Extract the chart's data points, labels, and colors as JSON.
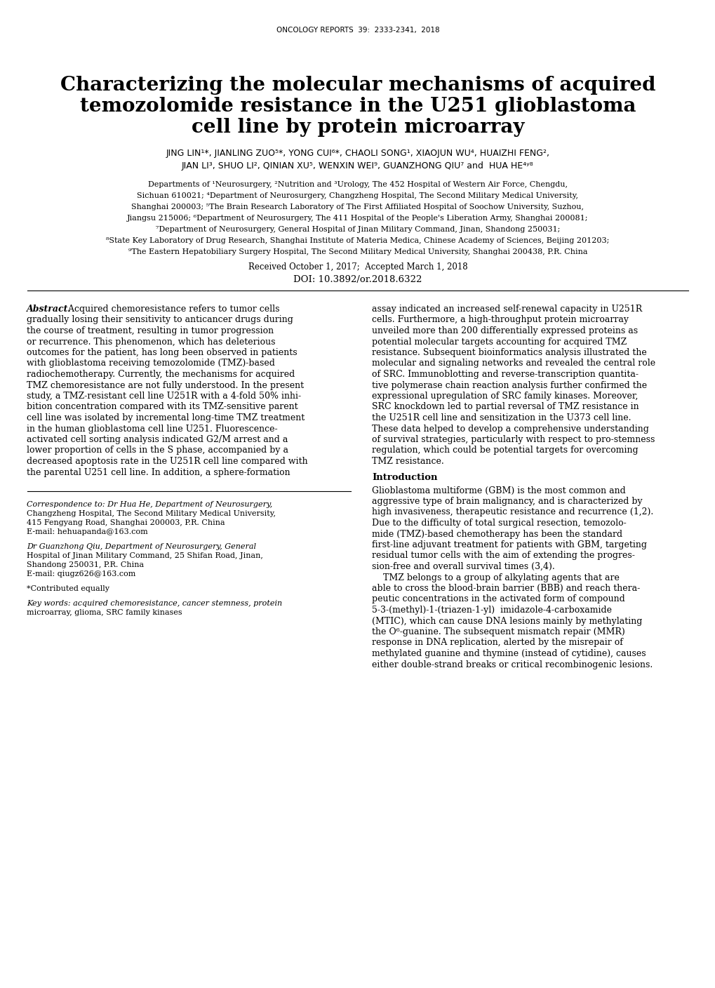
{
  "journal_header": "ONCOLOGY REPORTS  39:  2333-2341,  2018",
  "title_line1": "Characterizing the molecular mechanisms of acquired",
  "title_line2": "temozolomide resistance in the U251 glioblastoma",
  "title_line3": "cell line by protein microarray",
  "authors_line1": "JING LIN¹*, JIANLING ZUO⁵*, YONG CUI⁶*, CHAOLI SONG¹, XIAOJUN WU⁴, HUAIZHI FENG²,",
  "authors_line2": "JIAN LI³, SHUO LI², QINIAN XU⁵, WENXIN WEI⁹, GUANZHONG QIU⁷ and  HUA HE⁴ʸ⁸",
  "affil1": "Departments of ¹Neurosurgery, ²Nutrition and ³Urology, The 452 Hospital of Western Air Force, Chengdu,",
  "affil2": "Sichuan 610021; ⁴Department of Neurosurgery, Changzheng Hospital, The Second Military Medical University,",
  "affil3": "Shanghai 200003; ⁵The Brain Research Laboratory of The First Affiliated Hospital of Soochow University, Suzhou,",
  "affil4": "Jiangsu 215006; ⁶Department of Neurosurgery, The 411 Hospital of the People's Liberation Army, Shanghai 200081;",
  "affil5": "⁷Department of Neurosurgery, General Hospital of Jinan Military Command, Jinan, Shandong 250031;",
  "affil6": "⁸State Key Laboratory of Drug Research, Shanghai Institute of Materia Medica, Chinese Academy of Sciences, Beijing 201203;",
  "affil7": "⁹The Eastern Hepatobiliary Surgery Hospital, The Second Military Medical University, Shanghai 200438, P.R. China",
  "received": "Received October 1, 2017;  Accepted March 1, 2018",
  "doi": "DOI: 10.3892/or.2018.6322",
  "abstract_left_lines": [
    "Abstract. Acquired chemoresistance refers to tumor cells",
    "gradually losing their sensitivity to anticancer drugs during",
    "the course of treatment, resulting in tumor progression",
    "or recurrence. This phenomenon, which has deleterious",
    "outcomes for the patient, has long been observed in patients",
    "with glioblastoma receiving temozolomide (TMZ)-based",
    "radiochemotherapy. Currently, the mechanisms for acquired",
    "TMZ chemoresistance are not fully understood. In the present",
    "study, a TMZ-resistant cell line U251R with a 4-fold 50% inhi-",
    "bition concentration compared with its TMZ-sensitive parent",
    "cell line was isolated by incremental long-time TMZ treatment",
    "in the human glioblastoma cell line U251. Fluorescence-",
    "activated cell sorting analysis indicated G2/M arrest and a",
    "lower proportion of cells in the S phase, accompanied by a",
    "decreased apoptosis rate in the U251R cell line compared with",
    "the parental U251 cell line. In addition, a sphere-formation"
  ],
  "abstract_right_lines": [
    "assay indicated an increased self-renewal capacity in U251R",
    "cells. Furthermore, a high-throughput protein microarray",
    "unveiled more than 200 differentially expressed proteins as",
    "potential molecular targets accounting for acquired TMZ",
    "resistance. Subsequent bioinformatics analysis illustrated the",
    "molecular and signaling networks and revealed the central role",
    "of SRC. Immunoblotting and reverse-transcription quantita-",
    "tive polymerase chain reaction analysis further confirmed the",
    "expressional upregulation of SRC family kinases. Moreover,",
    "SRC knockdown led to partial reversal of TMZ resistance in",
    "the U251R cell line and sensitization in the U373 cell line.",
    "These data helped to develop a comprehensive understanding",
    "of survival strategies, particularly with respect to pro-stemness",
    "regulation, which could be potential targets for overcoming",
    "TMZ resistance."
  ],
  "introduction_label": "Introduction",
  "intro_lines": [
    "Glioblastoma multiforme (GBM) is the most common and",
    "aggressive type of brain malignancy, and is characterized by",
    "high invasiveness, therapeutic resistance and recurrence (1,2).",
    "Due to the difficulty of total surgical resection, temozolo-",
    "mide (TMZ)-based chemotherapy has been the standard",
    "first-line adjuvant treatment for patients with GBM, targeting",
    "residual tumor cells with the aim of extending the progres-",
    "sion-free and overall survival times (3,4).",
    "    TMZ belongs to a group of alkylating agents that are",
    "able to cross the blood-brain barrier (BBB) and reach thera-",
    "peutic concentrations in the activated form of compound",
    "5-3-(methyl)-1-(triazen-1-yl)  imidazole-4-carboxamide",
    "(MTIC), which can cause DNA lesions mainly by methylating",
    "the O⁶-guanine. The subsequent mismatch repair (MMR)",
    "response in DNA replication, alerted by the misrepair of",
    "methylated guanine and thymine (instead of cytidine), causes",
    "either double-strand breaks or critical recombinogenic lesions."
  ],
  "corr_lines": [
    "Correspondence to: Dr Hua He, Department of Neurosurgery,",
    "Changzheng Hospital, The Second Military Medical University,",
    "415 Fengyang Road, Shanghai 200003, P.R. China",
    "E-mail: hehuapanda@163.com",
    "",
    "Dr Guanzhong Qiu, Department of Neurosurgery, General",
    "Hospital of Jinan Military Command, 25 Shifan Road, Jinan,",
    "Shandong 250031, P.R. China",
    "E-mail: qiugz626@163.com",
    "",
    "*Contributed equally",
    "",
    "Key words: acquired chemoresistance, cancer stemness, protein",
    "microarray, glioma, SRC family kinases"
  ],
  "bg": "#ffffff"
}
